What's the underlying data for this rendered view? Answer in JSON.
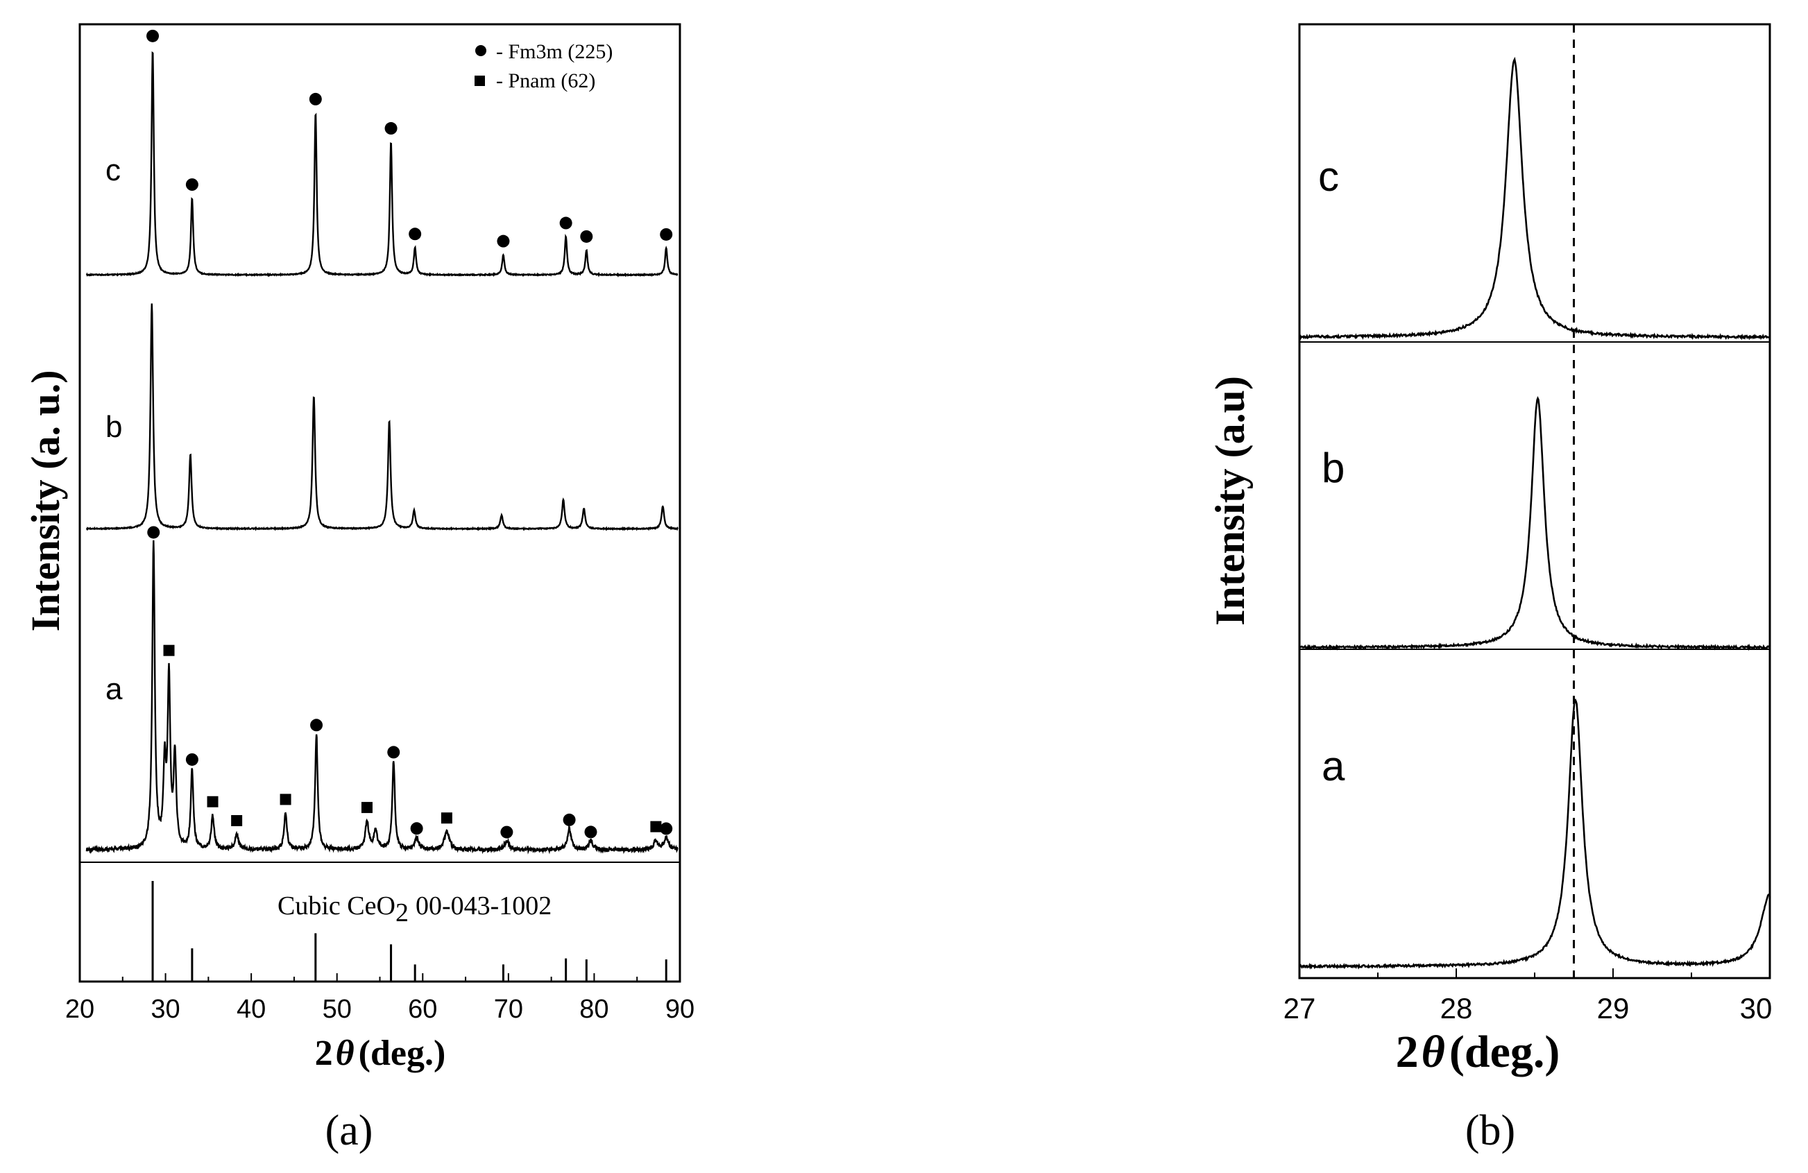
{
  "chart_data": [
    {
      "type": "line",
      "panel_label": "(a)",
      "panel_letter": "a",
      "xlabel": "2θ (deg.)",
      "xlabel_prefix": "2",
      "xlabel_theta": "θ",
      "xlabel_suffix": "(deg.)",
      "ylabel": "Intensity (a. u.)",
      "xlim": [
        20,
        90
      ],
      "xticks": [
        "20",
        "30",
        "40",
        "50",
        "60",
        "70",
        "80",
        "90"
      ],
      "legend": [
        {
          "marker": "circle",
          "label": "- Fm3m (225)"
        },
        {
          "marker": "square",
          "label": "- Pnam (62)"
        }
      ],
      "reference_label": "Cubic CeO",
      "reference_label_sub": "2",
      "reference_label_code": "00-043-1002",
      "reference_lines": [
        {
          "x": 28.5,
          "h": 1.0
        },
        {
          "x": 33.1,
          "h": 0.33
        },
        {
          "x": 47.5,
          "h": 0.48
        },
        {
          "x": 56.3,
          "h": 0.37
        },
        {
          "x": 59.1,
          "h": 0.17
        },
        {
          "x": 69.4,
          "h": 0.17
        },
        {
          "x": 76.7,
          "h": 0.23
        },
        {
          "x": 79.1,
          "h": 0.22
        },
        {
          "x": 88.4,
          "h": 0.22
        }
      ],
      "series": [
        {
          "name": "c",
          "peaks": [
            {
              "x": 28.5,
              "h": 1.0,
              "w": 0.16
            },
            {
              "x": 33.1,
              "h": 0.34,
              "w": 0.16
            },
            {
              "x": 47.5,
              "h": 0.72,
              "w": 0.16
            },
            {
              "x": 56.3,
              "h": 0.59,
              "w": 0.16
            },
            {
              "x": 59.1,
              "h": 0.12,
              "w": 0.16
            },
            {
              "x": 69.4,
              "h": 0.09,
              "w": 0.16
            },
            {
              "x": 76.7,
              "h": 0.17,
              "w": 0.16
            },
            {
              "x": 79.1,
              "h": 0.11,
              "w": 0.16
            },
            {
              "x": 88.4,
              "h": 0.12,
              "w": 0.16
            }
          ],
          "circle_markers": [
            28.5,
            33.1,
            47.5,
            56.3,
            59.1,
            69.4,
            76.7,
            79.1,
            88.4
          ],
          "square_markers": []
        },
        {
          "name": "b",
          "peaks": [
            {
              "x": 28.4,
              "h": 1.0,
              "w": 0.18
            },
            {
              "x": 32.9,
              "h": 0.33,
              "w": 0.18
            },
            {
              "x": 47.3,
              "h": 0.59,
              "w": 0.18
            },
            {
              "x": 56.1,
              "h": 0.48,
              "w": 0.18
            },
            {
              "x": 59.0,
              "h": 0.08,
              "w": 0.18
            },
            {
              "x": 69.2,
              "h": 0.06,
              "w": 0.18
            },
            {
              "x": 76.4,
              "h": 0.13,
              "w": 0.18
            },
            {
              "x": 78.8,
              "h": 0.09,
              "w": 0.18
            },
            {
              "x": 88.0,
              "h": 0.1,
              "w": 0.18
            }
          ],
          "circle_markers": [],
          "square_markers": []
        },
        {
          "name": "a",
          "peaks": [
            {
              "x": 28.6,
              "h": 1.0,
              "w": 0.18
            },
            {
              "x": 29.9,
              "h": 0.26,
              "w": 0.18
            },
            {
              "x": 30.4,
              "h": 0.55,
              "w": 0.18
            },
            {
              "x": 31.1,
              "h": 0.3,
              "w": 0.18
            },
            {
              "x": 33.1,
              "h": 0.26,
              "w": 0.18
            },
            {
              "x": 35.5,
              "h": 0.11,
              "w": 0.2
            },
            {
              "x": 38.3,
              "h": 0.05,
              "w": 0.25
            },
            {
              "x": 44.0,
              "h": 0.12,
              "w": 0.2
            },
            {
              "x": 47.6,
              "h": 0.38,
              "w": 0.18
            },
            {
              "x": 53.5,
              "h": 0.09,
              "w": 0.25
            },
            {
              "x": 54.5,
              "h": 0.06,
              "w": 0.25
            },
            {
              "x": 56.6,
              "h": 0.29,
              "w": 0.18
            },
            {
              "x": 59.3,
              "h": 0.04,
              "w": 0.25
            },
            {
              "x": 62.8,
              "h": 0.06,
              "w": 0.35
            },
            {
              "x": 69.8,
              "h": 0.03,
              "w": 0.3
            },
            {
              "x": 77.1,
              "h": 0.07,
              "w": 0.25
            },
            {
              "x": 79.6,
              "h": 0.03,
              "w": 0.3
            },
            {
              "x": 87.2,
              "h": 0.03,
              "w": 0.3
            },
            {
              "x": 88.4,
              "h": 0.04,
              "w": 0.3
            }
          ],
          "circle_markers": [
            28.6,
            33.1,
            47.6,
            56.6,
            59.3,
            69.8,
            77.1,
            79.6,
            88.4
          ],
          "square_markers": [
            30.4,
            35.5,
            38.3,
            44.0,
            53.5,
            62.8,
            87.2
          ]
        }
      ]
    },
    {
      "type": "line",
      "panel_label": "(b)",
      "panel_letter": "b",
      "xlabel": "2θ (deg.)",
      "xlabel_prefix": "2",
      "xlabel_theta": "θ",
      "xlabel_suffix": "(deg.)",
      "ylabel": "Intensity (a.u)",
      "xlim": [
        27,
        30
      ],
      "xticks": [
        "27",
        "28",
        "29",
        "30"
      ],
      "reference_x": 28.75,
      "series": [
        {
          "name": "c",
          "peak_x": 28.37,
          "peak_h": 1.0,
          "w": 0.075
        },
        {
          "name": "b",
          "peak_x": 28.52,
          "peak_h": 1.0,
          "w": 0.06
        },
        {
          "name": "a",
          "peak_x": 28.76,
          "peak_h": 1.0,
          "w": 0.065,
          "edge_peak_x": 30.0,
          "edge_peak_h": 0.27
        }
      ]
    }
  ]
}
